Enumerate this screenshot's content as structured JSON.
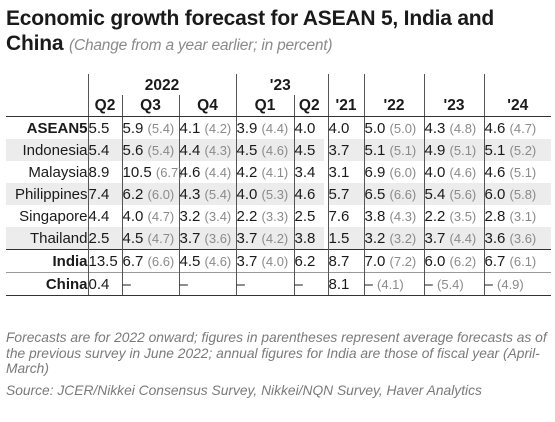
{
  "title": "Economic growth forecast for ASEAN 5, India and China",
  "subtitle": "(Change from a year earlier; in percent)",
  "year_headers": [
    "2022",
    "'23"
  ],
  "col_headers": [
    "Q2",
    "Q3",
    "Q4",
    "Q1",
    "Q2",
    "'21",
    "'22",
    "'23",
    "'24"
  ],
  "rows": [
    {
      "label": "ASEAN5",
      "bold": true,
      "cells": [
        {
          "v": "5.5",
          "p": ""
        },
        {
          "v": "5.9",
          "p": "(5.4)"
        },
        {
          "v": "4.1",
          "p": "(4.2)"
        },
        {
          "v": "3.9",
          "p": "(4.4)"
        },
        {
          "v": "4.0",
          "p": ""
        },
        {
          "v": "4.0",
          "p": ""
        },
        {
          "v": "5.0",
          "p": "(5.0)"
        },
        {
          "v": "4.3",
          "p": "(4.8)"
        },
        {
          "v": "4.6",
          "p": "(4.7)"
        }
      ]
    },
    {
      "label": "Indonesia",
      "bold": false,
      "cells": [
        {
          "v": "5.4",
          "p": ""
        },
        {
          "v": "5.6",
          "p": "(5.4)"
        },
        {
          "v": "4.4",
          "p": "(4.3)"
        },
        {
          "v": "4.5",
          "p": "(4.6)"
        },
        {
          "v": "4.5",
          "p": ""
        },
        {
          "v": "3.7",
          "p": ""
        },
        {
          "v": "5.1",
          "p": "(5.1)"
        },
        {
          "v": "4.9",
          "p": "(5.1)"
        },
        {
          "v": "5.1",
          "p": "(5.2)"
        }
      ]
    },
    {
      "label": "Malaysia",
      "bold": false,
      "cells": [
        {
          "v": "8.9",
          "p": ""
        },
        {
          "v": "10.5",
          "p": "(6.7)"
        },
        {
          "v": "4.6",
          "p": "(4.4)"
        },
        {
          "v": "4.2",
          "p": "(4.1)"
        },
        {
          "v": "3.4",
          "p": ""
        },
        {
          "v": "3.1",
          "p": ""
        },
        {
          "v": "6.9",
          "p": "(6.0)"
        },
        {
          "v": "4.0",
          "p": "(4.6)"
        },
        {
          "v": "4.6",
          "p": "(5.1)"
        }
      ]
    },
    {
      "label": "Philippines",
      "bold": false,
      "cells": [
        {
          "v": "7.4",
          "p": ""
        },
        {
          "v": "6.2",
          "p": "(6.0)"
        },
        {
          "v": "4.3",
          "p": "(5.4)"
        },
        {
          "v": "4.0",
          "p": "(5.3)"
        },
        {
          "v": "4.6",
          "p": ""
        },
        {
          "v": "5.7",
          "p": ""
        },
        {
          "v": "6.5",
          "p": "(6.6)"
        },
        {
          "v": "5.4",
          "p": "(5.6)"
        },
        {
          "v": "6.0",
          "p": "(5.8)"
        }
      ]
    },
    {
      "label": "Singapore",
      "bold": false,
      "cells": [
        {
          "v": "4.4",
          "p": ""
        },
        {
          "v": "4.0",
          "p": "(4.7)"
        },
        {
          "v": "3.2",
          "p": "(3.4)"
        },
        {
          "v": "2.2",
          "p": "(3.3)"
        },
        {
          "v": "2.5",
          "p": ""
        },
        {
          "v": "7.6",
          "p": ""
        },
        {
          "v": "3.8",
          "p": "(4.3)"
        },
        {
          "v": "2.2",
          "p": "(3.5)"
        },
        {
          "v": "2.8",
          "p": "(3.1)"
        }
      ]
    },
    {
      "label": "Thailand",
      "bold": false,
      "cells": [
        {
          "v": "2.5",
          "p": ""
        },
        {
          "v": "4.5",
          "p": "(4.7)"
        },
        {
          "v": "3.7",
          "p": "(3.6)"
        },
        {
          "v": "3.7",
          "p": "(4.2)"
        },
        {
          "v": "3.8",
          "p": ""
        },
        {
          "v": "1.5",
          "p": ""
        },
        {
          "v": "3.2",
          "p": "(3.2)"
        },
        {
          "v": "3.7",
          "p": "(4.4)"
        },
        {
          "v": "3.6",
          "p": "(3.6)"
        }
      ]
    },
    {
      "label": "India",
      "bold": true,
      "cells": [
        {
          "v": "13.5",
          "p": ""
        },
        {
          "v": "6.7",
          "p": "(6.6)"
        },
        {
          "v": "4.5",
          "p": "(4.6)"
        },
        {
          "v": "3.7",
          "p": "(4.0)"
        },
        {
          "v": "6.2",
          "p": ""
        },
        {
          "v": "8.7",
          "p": ""
        },
        {
          "v": "7.0",
          "p": "(7.2)"
        },
        {
          "v": "6.0",
          "p": "(6.2)"
        },
        {
          "v": "6.7",
          "p": "(6.1)"
        }
      ]
    },
    {
      "label": "China",
      "bold": true,
      "cells": [
        {
          "v": "0.4",
          "p": ""
        },
        {
          "v": "–",
          "p": ""
        },
        {
          "v": "–",
          "p": ""
        },
        {
          "v": "–",
          "p": ""
        },
        {
          "v": "–",
          "p": ""
        },
        {
          "v": "8.1",
          "p": ""
        },
        {
          "v": "–",
          "p": "(4.1)"
        },
        {
          "v": "–",
          "p": "(5.4)"
        },
        {
          "v": "–",
          "p": "(4.9)"
        }
      ]
    }
  ],
  "note": "Forecasts are for 2022 onward; figures in parentheses represent average forecasts as of the previous survey in June 2022; annual figures for India are those of fiscal year (April-March)",
  "source": "Source: JCER/Nikkei Consensus Survey, Nikkei/NQN Survey, Haver Analytics",
  "colors": {
    "shade": "#ececec",
    "muted": "#8a8a8a",
    "text": "#1a1a1a"
  }
}
